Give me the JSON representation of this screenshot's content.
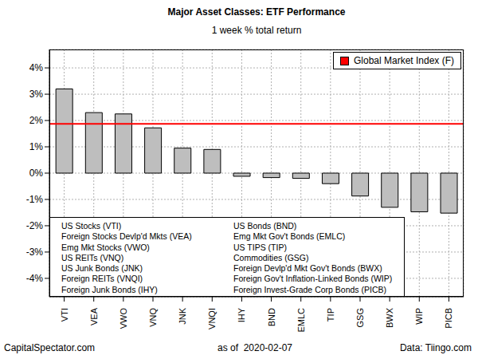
{
  "chart_data": {
    "type": "bar",
    "title": "Major Asset Classes: ETF Performance",
    "subtitle": "1 week % total return",
    "categories": [
      "VTI",
      "VEA",
      "VWO",
      "VNQ",
      "JNK",
      "VNQI",
      "IHY",
      "BND",
      "EMLC",
      "TIP",
      "GSG",
      "BWX",
      "WIP",
      "PICB"
    ],
    "values": [
      3.2,
      2.3,
      2.25,
      1.72,
      0.95,
      0.9,
      -0.12,
      -0.17,
      -0.2,
      -0.4,
      -0.87,
      -1.3,
      -1.47,
      -1.52
    ],
    "color": "#bebebe",
    "ylim": [
      -4.7,
      4.7
    ],
    "yticks": [
      {
        "value": -4,
        "label": "-4%"
      },
      {
        "value": -3,
        "label": "-3%"
      },
      {
        "value": -2,
        "label": "-2%"
      },
      {
        "value": -1,
        "label": "-1%"
      },
      {
        "value": 0,
        "label": "0%"
      },
      {
        "value": 1,
        "label": "1%"
      },
      {
        "value": 2,
        "label": "2%"
      },
      {
        "value": 3,
        "label": "3%"
      },
      {
        "value": 4,
        "label": "4%"
      }
    ],
    "grid": true,
    "legend": "top-right",
    "reference_line": {
      "name": "Global Market Index (F)",
      "value": 1.87,
      "color": "#ff0000"
    },
    "notes": [
      "US Stocks (VTI)",
      "Foreign Stocks Devlp'd Mkts (VEA)",
      "Emg Mkt Stocks (VWO)",
      "US REITs (VNQ)",
      "US Junk Bonds (JNK)",
      "Foreign REITs (VNQI)",
      "Foreign Junk Bonds (IHY)",
      "US Bonds (BND)",
      "Emg Mkt Gov't Bonds (EMLC)",
      "US TIPS (TIP)",
      "Commodities (GSG)",
      "Foreign Devlp'd Mkt Gov't Bonds (BWX)",
      "Foreign Gov't Inflation-Linked Bonds (WIP)",
      "Foreign Invest-Grade Corp Bonds (PICB)"
    ],
    "footer": [
      "CapitalSpectator.com",
      "as of  2020-02-07",
      "Data: Tiingo.com"
    ]
  }
}
